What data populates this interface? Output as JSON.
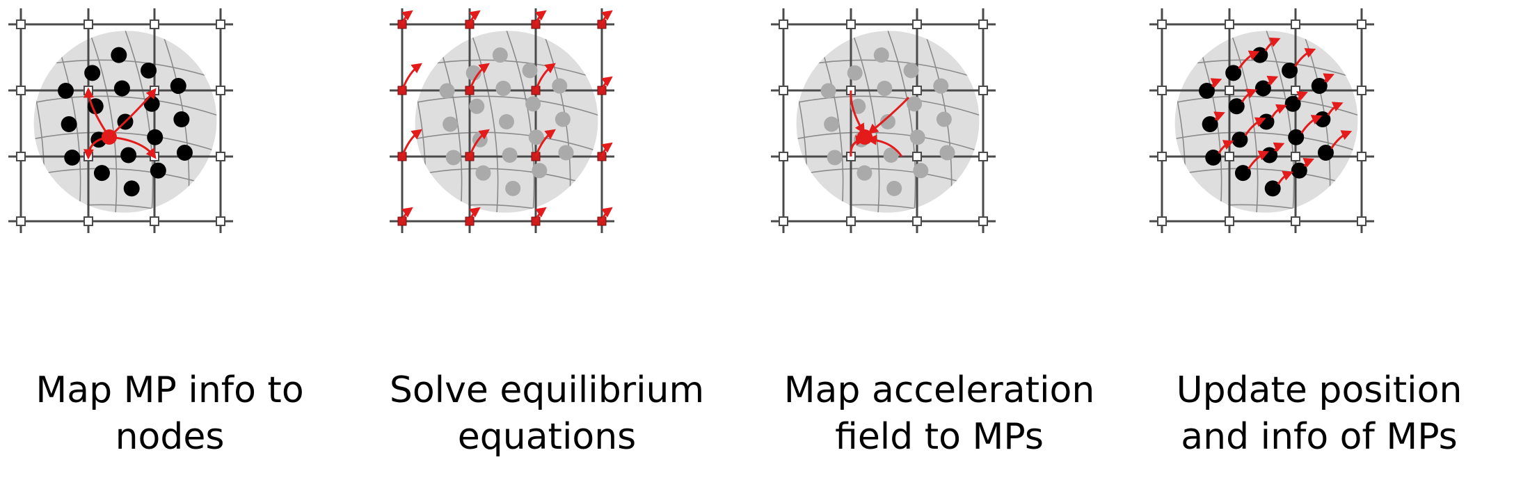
{
  "panels": [
    {
      "id": "map-to-nodes",
      "caption": [
        "Map MP info to",
        "nodes"
      ],
      "mp_style": "solid",
      "node_style": "hollow",
      "arrows": "to-center"
    },
    {
      "id": "solve-equilibrium",
      "caption": [
        "Solve equilibrium",
        "equations"
      ],
      "mp_style": "faded",
      "node_style": "red",
      "arrows": "node-velocity"
    },
    {
      "id": "map-to-mps",
      "caption": [
        "Map acceleration",
        "field to MPs"
      ],
      "mp_style": "faded",
      "node_style": "hollow",
      "arrows": "from-nodes"
    },
    {
      "id": "update-mps",
      "caption": [
        "Update position",
        "and info of MPs"
      ],
      "mp_style": "solid",
      "node_style": "hollow",
      "arrows": "mp-velocity"
    }
  ],
  "colors": {
    "grid": "#4a4a4a",
    "node_fill": "#ffffff",
    "node_red": "#cc1c1c",
    "body": "#dedede",
    "mesh": "#8a8a8a",
    "mp_solid": "#000000",
    "mp_faded": "#aaaaaa",
    "arrow": "#e31b1b"
  }
}
